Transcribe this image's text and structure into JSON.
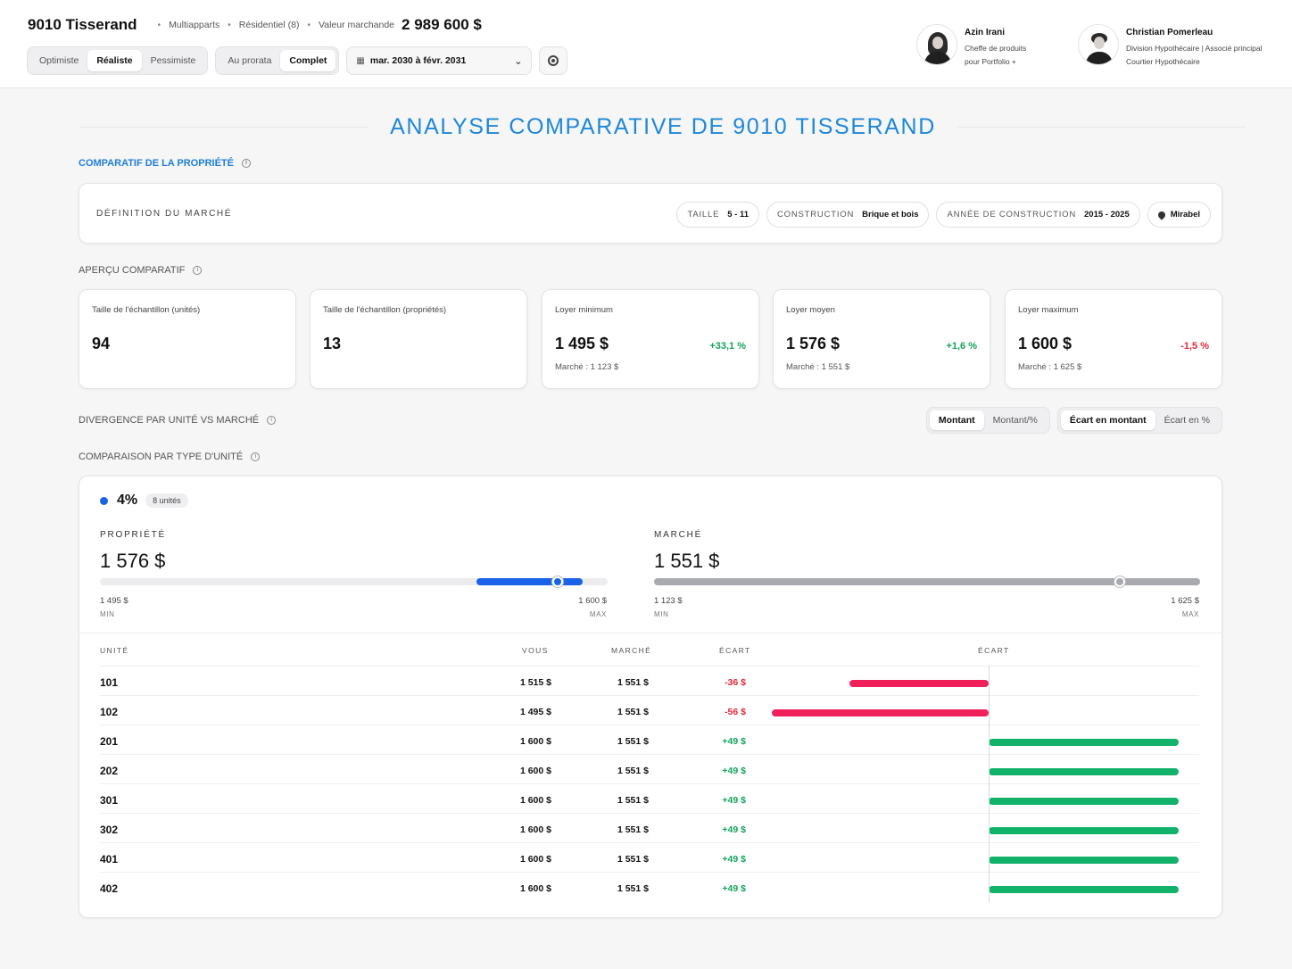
{
  "header": {
    "title": "9010 Tisserand",
    "type": "Multiapparts",
    "category": "Résidentiel (8)",
    "market_value_label": "Valeur marchande",
    "market_value": "2 989 600 $"
  },
  "scenario": {
    "options": [
      "Optimiste",
      "Réaliste",
      "Pessimiste"
    ],
    "selected": "Réaliste"
  },
  "period_mode": {
    "options": [
      "Au prorata",
      "Complet"
    ],
    "selected": "Complet"
  },
  "date_range": "mar. 2030 à févr. 2031",
  "contacts": [
    {
      "name": "Azin Irani",
      "role_line1": "Cheffe de produits",
      "role_line2": "pour Portfolio +"
    },
    {
      "name": "Christian Pomerleau",
      "role_line1": "Division Hypothécaire | Associé principal",
      "role_line2": "Courtier Hypothécaire"
    }
  ],
  "page_title": "ANALYSE COMPARATIVE DE 9010 TISSERAND",
  "sections": {
    "property_comparison": "COMPARATIF DE LA PROPRIÉTÉ",
    "overview": "APERÇU COMPARATIF",
    "divergence": "DIVERGENCE PAR UNITÉ VS MARCHÉ",
    "by_unit_type": "COMPARAISON PAR TYPE D'UNITÉ"
  },
  "market_definition": {
    "label": "DÉFINITION DU MARCHÉ",
    "filters": [
      {
        "key": "TAILLE",
        "value": "5 - 11"
      },
      {
        "key": "CONSTRUCTION",
        "value": "Brique et bois"
      },
      {
        "key": "ANNÉE DE CONSTRUCTION",
        "value": "2015 - 2025"
      }
    ],
    "location": "Mirabel"
  },
  "kpis": [
    {
      "title": "Taille de l'échantillon (unités)",
      "value": "94",
      "delta": "",
      "sub": ""
    },
    {
      "title": "Taille de l'échantillon (propriétés)",
      "value": "13",
      "delta": "",
      "sub": ""
    },
    {
      "title": "Loyer minimum",
      "value": "1 495 $",
      "delta": "+33,1 %",
      "sub": "Marché : 1 123 $"
    },
    {
      "title": "Loyer moyen",
      "value": "1 576 $",
      "delta": "+1,6 %",
      "sub": "Marché : 1 551 $"
    },
    {
      "title": "Loyer maximum",
      "value": "1 600 $",
      "delta": "-1,5 %",
      "sub": "Marché : 1 625 $"
    }
  ],
  "display_toggle": {
    "options": [
      "Montant",
      "Montant/%"
    ],
    "selected": "Montant"
  },
  "gap_toggle": {
    "options": [
      "Écart en montant",
      "Écart en %"
    ],
    "selected": "Écart en montant"
  },
  "unit_type": {
    "pct": "4%",
    "units_badge": "8 unités"
  },
  "property_range": {
    "title": "PROPRIÉTÉ",
    "value": "1 576 $",
    "min": "1 495 $",
    "max": "1 600 $",
    "min_cap": "MIN",
    "max_cap": "MAX",
    "avg_value": 1576,
    "min_value": 1495,
    "max_value": 1600
  },
  "market_range": {
    "title": "MARCHÉ",
    "value": "1 551 $",
    "min": "1 123 $",
    "max": "1 625 $",
    "min_cap": "MIN",
    "max_cap": "MAX",
    "avg_value": 1551,
    "min_value": 1123,
    "max_value": 1625
  },
  "table": {
    "headers": {
      "unit": "UNITÉ",
      "you": "VOUS",
      "market": "MARCHÉ",
      "gap": "ÉCART",
      "gap_chart": "ÉCART"
    },
    "rows": [
      {
        "unit": "101",
        "you": "1 515 $",
        "market": "1 551 $",
        "gap": "-36 $",
        "gap_value": -36
      },
      {
        "unit": "102",
        "you": "1 495 $",
        "market": "1 551 $",
        "gap": "-56 $",
        "gap_value": -56
      },
      {
        "unit": "201",
        "you": "1 600 $",
        "market": "1 551 $",
        "gap": "+49 $",
        "gap_value": 49
      },
      {
        "unit": "202",
        "you": "1 600 $",
        "market": "1 551 $",
        "gap": "+49 $",
        "gap_value": 49
      },
      {
        "unit": "301",
        "you": "1 600 $",
        "market": "1 551 $",
        "gap": "+49 $",
        "gap_value": 49
      },
      {
        "unit": "302",
        "you": "1 600 $",
        "market": "1 551 $",
        "gap": "+49 $",
        "gap_value": 49
      },
      {
        "unit": "401",
        "you": "1 600 $",
        "market": "1 551 $",
        "gap": "+49 $",
        "gap_value": 49
      },
      {
        "unit": "402",
        "you": "1 600 $",
        "market": "1 551 $",
        "gap": "+49 $",
        "gap_value": 49
      }
    ]
  },
  "colors": {
    "accent": "#1e88d8",
    "blue": "#1a63e8",
    "positive": "#14a35c",
    "negative": "#e5263b",
    "bar_positive": "#12b26b",
    "bar_negative": "#f0215a"
  }
}
